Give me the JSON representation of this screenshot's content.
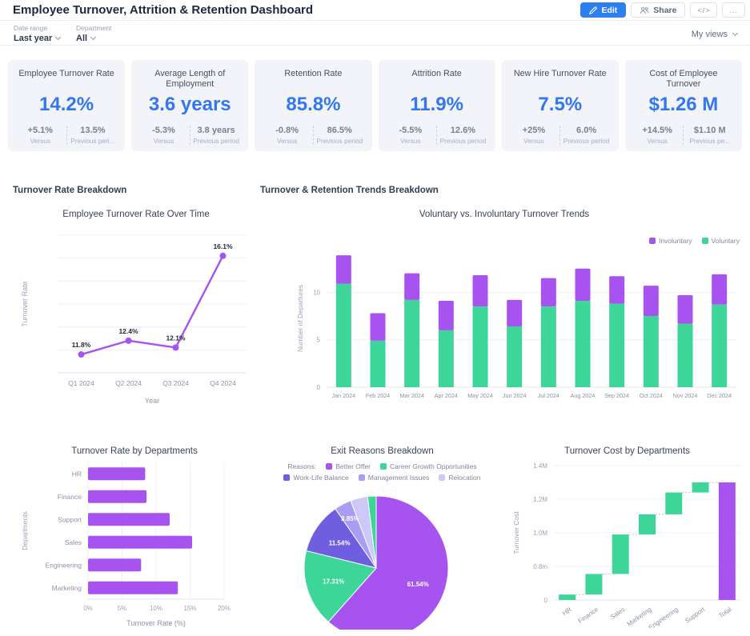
{
  "header": {
    "title": "Employee Turnover, Attrition & Retention Dashboard",
    "buttons": {
      "edit": "Edit",
      "share": "Share",
      "code": "</>",
      "more": "..."
    }
  },
  "filters": {
    "date_range": {
      "label": "Date range",
      "value": "Last year"
    },
    "department": {
      "label": "Department",
      "value": "All"
    },
    "views_label": "My views"
  },
  "kpis": [
    {
      "title": "Employee Turnover Rate",
      "value": "14.2%",
      "change": "+5.1%",
      "change_label": "Versus",
      "previous": "13.5%",
      "previous_label": "Previous peri..."
    },
    {
      "title": "Average Length of Employment",
      "value": "3.6 years",
      "change": "-5.3%",
      "change_label": "Versus",
      "previous": "3.8 years",
      "previous_label": "Previous period"
    },
    {
      "title": "Retention Rate",
      "value": "85.8%",
      "change": "-0.8%",
      "change_label": "Versus",
      "previous": "86.5%",
      "previous_label": "Previous period"
    },
    {
      "title": "Attrition Rate",
      "value": "11.9%",
      "change": "-5.5%",
      "change_label": "Versus",
      "previous": "12.6%",
      "previous_label": "Previous period"
    },
    {
      "title": "New Hire Turnover Rate",
      "value": "7.5%",
      "change": "+25%",
      "change_label": "Versus",
      "previous": "6.0%",
      "previous_label": "Previous period"
    },
    {
      "title": "Cost of Employee Turnover",
      "value": "$1.26 M",
      "change": "+14.5%",
      "change_label": "Versus",
      "previous": "$1.10 M",
      "previous_label": "Previous pe..."
    }
  ],
  "sections": {
    "left": "Turnover Rate Breakdown",
    "right": "Turnover & Retention Trends Breakdown"
  },
  "colors": {
    "accent_blue": "#3377ee",
    "purple": "#a653f0",
    "green": "#3dd598",
    "indigo": "#6f5fe0",
    "lavender": "#a89df2",
    "light_lavender": "#cdc8f7"
  },
  "chart_data": [
    {
      "id": "line-turnover-over-time",
      "type": "line",
      "title": "Employee Turnover Rate Over Time",
      "xlabel": "Year",
      "ylabel": "Turnover Rate",
      "x": [
        "Q1 2024",
        "Q2 2024",
        "Q3 2024",
        "Q4 2024"
      ],
      "values": [
        11.8,
        12.4,
        12.1,
        16.1
      ],
      "point_labels": [
        "11.8%",
        "12.4%",
        "12.1%",
        "16.1%"
      ],
      "ylim": [
        11,
        17
      ],
      "color": "#a653f0",
      "grid": true
    },
    {
      "id": "stacked-voluntary-involuntary",
      "type": "stacked-bar",
      "title": "Voluntary vs. Involuntary Turnover Trends",
      "ylabel": "Number of Departures",
      "categories": [
        "Jan 2024",
        "Feb 2024",
        "Mar 2024",
        "Apr 2024",
        "May 2024",
        "Jun 2024",
        "Jul 2024",
        "Aug 2024",
        "Sep 2024",
        "Oct 2024",
        "Nov 2024",
        "Dec 2024"
      ],
      "series": [
        {
          "name": "Voluntary",
          "color": "#3dd598",
          "values": [
            10.9,
            4.9,
            9.2,
            6.0,
            8.5,
            6.4,
            8.5,
            9.1,
            8.8,
            7.5,
            6.7,
            8.7
          ]
        },
        {
          "name": "Involuntary",
          "color": "#a653f0",
          "values": [
            3.0,
            2.9,
            2.8,
            3.1,
            3.3,
            2.8,
            3.0,
            3.4,
            2.9,
            3.2,
            3.0,
            3.2
          ]
        }
      ],
      "legend_order": [
        "Involuntary",
        "Voluntary"
      ],
      "yticks": [
        0,
        5,
        10
      ],
      "ylim": [
        0,
        14.5
      ],
      "legend_position": "top-right",
      "grid": true
    },
    {
      "id": "hbar-turnover-by-department",
      "type": "hbar",
      "title": "Turnover Rate by Departments",
      "xlabel": "Turnover Rate (%)",
      "ylabel": "Departments",
      "categories": [
        "HR",
        "Finance",
        "Support",
        "Sales",
        "Engineering",
        "Marketing"
      ],
      "values": [
        8.4,
        8.6,
        12.0,
        15.3,
        7.8,
        13.2
      ],
      "xticks": [
        "0%",
        "5%",
        "10%",
        "15%",
        "20%"
      ],
      "xlim": [
        0,
        20
      ],
      "color": "#a653f0",
      "grid": true
    },
    {
      "id": "pie-exit-reasons",
      "type": "pie",
      "title": "Exit Reasons Breakdown",
      "legend_title": "Reasons:",
      "slices": [
        {
          "label": "Better Offer",
          "value": 61.54,
          "display": "61.54%",
          "color": "#a653f0"
        },
        {
          "label": "Career Growth Opportunities",
          "value": 17.31,
          "display": "17.31%",
          "color": "#3dd598"
        },
        {
          "label": "Work-Life Balance",
          "value": 11.54,
          "display": "11.54%",
          "color": "#6f5fe0"
        },
        {
          "label": "Management Issues",
          "value": 3.85,
          "display": "3.85%",
          "color": "#a89df2"
        },
        {
          "label": "Relocation",
          "value": 3.85,
          "display": "",
          "color": "#cdc8f7"
        },
        {
          "label": "",
          "value": 1.91,
          "display": "",
          "color": "#3dd598"
        }
      ],
      "legend_position": "top"
    },
    {
      "id": "waterfall-turnover-cost",
      "type": "waterfall",
      "title": "Turnover Cost by Departments",
      "ylabel": "Turnover Cost",
      "categories": [
        "HR",
        "Finance",
        "Sales",
        "Marketing",
        "Engineering",
        "Support",
        "Total"
      ],
      "steps_millions": [
        0.13,
        0.49,
        0.37,
        0.12,
        0.13,
        0.06
      ],
      "total_millions": 1.3,
      "ytick_values": [
        0,
        0.8,
        1.0,
        1.2,
        1.4
      ],
      "ytick_labels": [
        "0",
        "0.8m",
        "1.0M",
        "1.2M",
        "1.4M"
      ],
      "bar_color": "#3dd598",
      "total_color": "#a653f0",
      "grid": true
    }
  ]
}
